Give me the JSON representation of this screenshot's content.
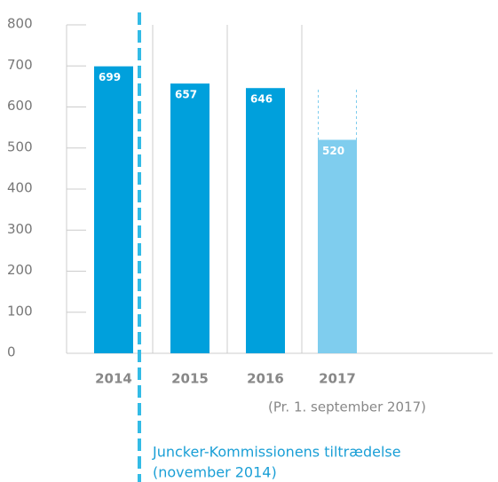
{
  "chart_data": {
    "type": "bar",
    "categories": [
      "2014",
      "2015",
      "2016",
      "2017"
    ],
    "values": [
      699,
      657,
      646,
      520
    ],
    "colors": [
      "#00a0dc",
      "#00a0dc",
      "#00a0dc",
      "#7fcdee"
    ],
    "ylim": [
      0,
      800
    ],
    "yticks": [
      0,
      100,
      200,
      300,
      400,
      500,
      600,
      700,
      800
    ],
    "note": "(Pr. 1. september 2017)",
    "annotation": [
      "Juncker-Kommissionens tiltrædelse",
      "(november 2014)"
    ]
  }
}
